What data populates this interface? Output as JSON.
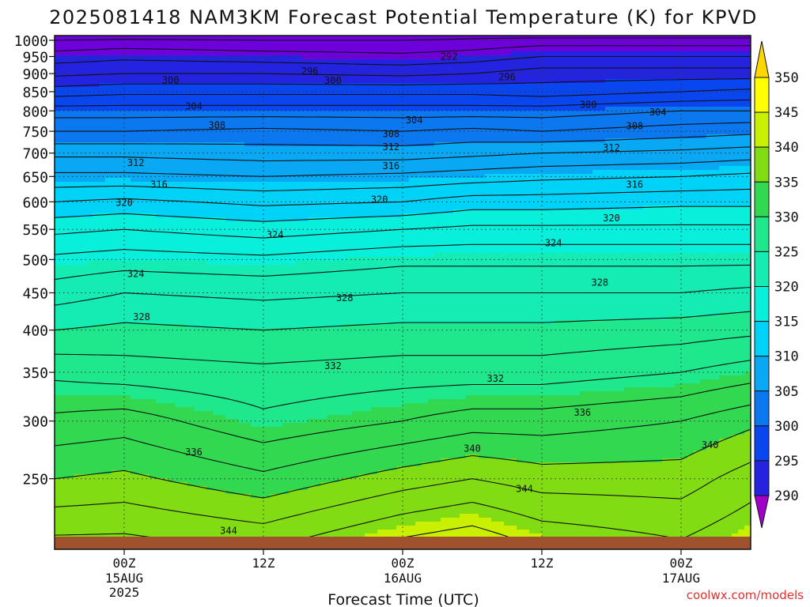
{
  "chart_data": {
    "type": "heatmap",
    "title": "2025081418 NAM3KM Forecast Potential Temperature (K) for KPVD",
    "xlabel": "Forecast Time (UTC)",
    "ylabel": "",
    "credit": "coolwx.com/models",
    "x_range_hours": [
      -6,
      54
    ],
    "x_ticks": [
      {
        "hour": 0,
        "label": "00Z",
        "date": "15AUG",
        "year": "2025"
      },
      {
        "hour": 12,
        "label": "12Z",
        "date": "",
        "year": ""
      },
      {
        "hour": 24,
        "label": "00Z",
        "date": "16AUG",
        "year": ""
      },
      {
        "hour": 36,
        "label": "12Z",
        "date": "",
        "year": ""
      },
      {
        "hour": 48,
        "label": "00Z",
        "date": "17AUG",
        "year": ""
      }
    ],
    "y_axis": {
      "scale": "log",
      "units": "hPa",
      "range": [
        1015,
        200
      ],
      "ticks": [
        250,
        300,
        350,
        400,
        450,
        500,
        550,
        600,
        650,
        700,
        750,
        800,
        850,
        900,
        950,
        1000
      ]
    },
    "colorbar": {
      "levels": [
        290,
        295,
        300,
        305,
        310,
        315,
        320,
        325,
        330,
        335,
        340,
        345,
        350
      ],
      "colors": [
        "#a000c8",
        "#6e00dc",
        "#2424e0",
        "#0a46f0",
        "#0c78f0",
        "#08a8f4",
        "#00d2f8",
        "#08f0dc",
        "#14ecb4",
        "#1fe88c",
        "#32d850",
        "#82dc14",
        "#c8f000",
        "#ffff00",
        "#ffd700"
      ]
    },
    "grid": true,
    "profiles": [
      {
        "hour": -6,
        "theta": [
          [
            1015,
            289
          ],
          [
            1000,
            292
          ],
          [
            950,
            295
          ],
          [
            900,
            297.5
          ],
          [
            850,
            301
          ],
          [
            800,
            305
          ],
          [
            750,
            308
          ],
          [
            700,
            311.5
          ],
          [
            650,
            314.5
          ],
          [
            600,
            318
          ],
          [
            550,
            321.5
          ],
          [
            500,
            324.5
          ],
          [
            450,
            327
          ],
          [
            400,
            330
          ],
          [
            350,
            333.5
          ],
          [
            300,
            336.5
          ],
          [
            250,
            340
          ],
          [
            200,
            345
          ]
        ]
      },
      {
        "hour": 0,
        "theta": [
          [
            1015,
            290
          ],
          [
            1000,
            292.5
          ],
          [
            950,
            295.5
          ],
          [
            900,
            298
          ],
          [
            850,
            301.5
          ],
          [
            800,
            305
          ],
          [
            750,
            308
          ],
          [
            700,
            311.5
          ],
          [
            650,
            314.5
          ],
          [
            600,
            318.5
          ],
          [
            550,
            322
          ],
          [
            500,
            325
          ],
          [
            450,
            328
          ],
          [
            400,
            330.5
          ],
          [
            350,
            333
          ],
          [
            300,
            337
          ],
          [
            250,
            340.5
          ],
          [
            200,
            345
          ]
        ]
      },
      {
        "hour": 12,
        "theta": [
          [
            1015,
            290
          ],
          [
            1000,
            292
          ],
          [
            950,
            295
          ],
          [
            900,
            298
          ],
          [
            850,
            301.5
          ],
          [
            800,
            305
          ],
          [
            750,
            308.5
          ],
          [
            700,
            311
          ],
          [
            650,
            314
          ],
          [
            600,
            317.5
          ],
          [
            550,
            321
          ],
          [
            500,
            324.5
          ],
          [
            450,
            327.5
          ],
          [
            400,
            330
          ],
          [
            350,
            332.5
          ],
          [
            300,
            334.5
          ],
          [
            250,
            338.5
          ],
          [
            200,
            344
          ]
        ]
      },
      {
        "hour": 24,
        "theta": [
          [
            1015,
            290
          ],
          [
            1000,
            292
          ],
          [
            950,
            294.5
          ],
          [
            900,
            297.5
          ],
          [
            850,
            301.5
          ],
          [
            800,
            305
          ],
          [
            750,
            308
          ],
          [
            700,
            311
          ],
          [
            650,
            314.5
          ],
          [
            600,
            318
          ],
          [
            550,
            322
          ],
          [
            500,
            325.5
          ],
          [
            450,
            328
          ],
          [
            400,
            330.5
          ],
          [
            350,
            333
          ],
          [
            300,
            336
          ],
          [
            250,
            341
          ],
          [
            200,
            347
          ]
        ]
      },
      {
        "hour": 30,
        "theta": [
          [
            1015,
            291
          ],
          [
            1000,
            292.5
          ],
          [
            950,
            295
          ],
          [
            900,
            298
          ],
          [
            850,
            301.5
          ],
          [
            800,
            305
          ],
          [
            750,
            308.5
          ],
          [
            700,
            311.5
          ],
          [
            650,
            315
          ],
          [
            600,
            319
          ],
          [
            550,
            322.5
          ],
          [
            500,
            325.5
          ],
          [
            450,
            328
          ],
          [
            400,
            330.5
          ],
          [
            350,
            333
          ],
          [
            300,
            337
          ],
          [
            250,
            342
          ],
          [
            200,
            348
          ]
        ]
      },
      {
        "hour": 36,
        "theta": [
          [
            1015,
            291
          ],
          [
            1000,
            293
          ],
          [
            950,
            296
          ],
          [
            900,
            299
          ],
          [
            850,
            301
          ],
          [
            800,
            305
          ],
          [
            750,
            308
          ],
          [
            700,
            312
          ],
          [
            650,
            315.5
          ],
          [
            600,
            319
          ],
          [
            550,
            322.5
          ],
          [
            500,
            325.5
          ],
          [
            450,
            328
          ],
          [
            400,
            330.5
          ],
          [
            350,
            333
          ],
          [
            300,
            337
          ],
          [
            250,
            341
          ],
          [
            200,
            346
          ]
        ]
      },
      {
        "hour": 48,
        "theta": [
          [
            1015,
            291
          ],
          [
            1000,
            293
          ],
          [
            950,
            296
          ],
          [
            900,
            299
          ],
          [
            850,
            302
          ],
          [
            800,
            306
          ],
          [
            750,
            309
          ],
          [
            700,
            312.5
          ],
          [
            650,
            316
          ],
          [
            600,
            319.5
          ],
          [
            550,
            322.5
          ],
          [
            500,
            325.5
          ],
          [
            450,
            328
          ],
          [
            400,
            331
          ],
          [
            350,
            334
          ],
          [
            300,
            338
          ],
          [
            250,
            341
          ],
          [
            200,
            344.5
          ]
        ]
      },
      {
        "hour": 54,
        "theta": [
          [
            1015,
            291
          ],
          [
            1000,
            293
          ],
          [
            950,
            296
          ],
          [
            900,
            299
          ],
          [
            850,
            302.5
          ],
          [
            800,
            306
          ],
          [
            750,
            309.5
          ],
          [
            700,
            313
          ],
          [
            650,
            316.5
          ],
          [
            600,
            319.5
          ],
          [
            550,
            322.5
          ],
          [
            500,
            325.5
          ],
          [
            450,
            328.5
          ],
          [
            400,
            331.5
          ],
          [
            350,
            335
          ],
          [
            300,
            339.5
          ],
          [
            250,
            343
          ],
          [
            200,
            346
          ]
        ]
      }
    ],
    "contour_labels": [
      {
        "value": "344",
        "hour": 9,
        "p": 212
      },
      {
        "value": "344",
        "hour": 34.5,
        "p": 242
      },
      {
        "value": "336",
        "hour": 6,
        "p": 272
      },
      {
        "value": "340",
        "hour": 30,
        "p": 275
      },
      {
        "value": "340",
        "hour": 50.5,
        "p": 278
      },
      {
        "value": "336",
        "hour": 39.5,
        "p": 308
      },
      {
        "value": "332",
        "hour": 32,
        "p": 343
      },
      {
        "value": "332",
        "hour": 18,
        "p": 357
      },
      {
        "value": "328",
        "hour": 1.5,
        "p": 417
      },
      {
        "value": "328",
        "hour": 19,
        "p": 443
      },
      {
        "value": "328",
        "hour": 41,
        "p": 465
      },
      {
        "value": "324",
        "hour": 1,
        "p": 478
      },
      {
        "value": "324",
        "hour": 37,
        "p": 527
      },
      {
        "value": "324",
        "hour": 13,
        "p": 541
      },
      {
        "value": "320",
        "hour": 42,
        "p": 570
      },
      {
        "value": "320",
        "hour": 0,
        "p": 598
      },
      {
        "value": "320",
        "hour": 22,
        "p": 604
      },
      {
        "value": "316",
        "hour": 3,
        "p": 634
      },
      {
        "value": "316",
        "hour": 44,
        "p": 634
      },
      {
        "value": "316",
        "hour": 23,
        "p": 672
      },
      {
        "value": "312",
        "hour": 1,
        "p": 679
      },
      {
        "value": "312",
        "hour": 42,
        "p": 712
      },
      {
        "value": "312",
        "hour": 23,
        "p": 714
      },
      {
        "value": "308",
        "hour": 23,
        "p": 744
      },
      {
        "value": "308",
        "hour": 8,
        "p": 764
      },
      {
        "value": "308",
        "hour": 44,
        "p": 762
      },
      {
        "value": "304",
        "hour": 25,
        "p": 777
      },
      {
        "value": "304",
        "hour": 46,
        "p": 797
      },
      {
        "value": "304",
        "hour": 6,
        "p": 812
      },
      {
        "value": "300",
        "hour": 40,
        "p": 816
      },
      {
        "value": "300",
        "hour": 4,
        "p": 881
      },
      {
        "value": "300",
        "hour": 18,
        "p": 880
      },
      {
        "value": "296",
        "hour": 16,
        "p": 907
      },
      {
        "value": "296",
        "hour": 33,
        "p": 890
      },
      {
        "value": "292",
        "hour": 28,
        "p": 950
      }
    ]
  }
}
